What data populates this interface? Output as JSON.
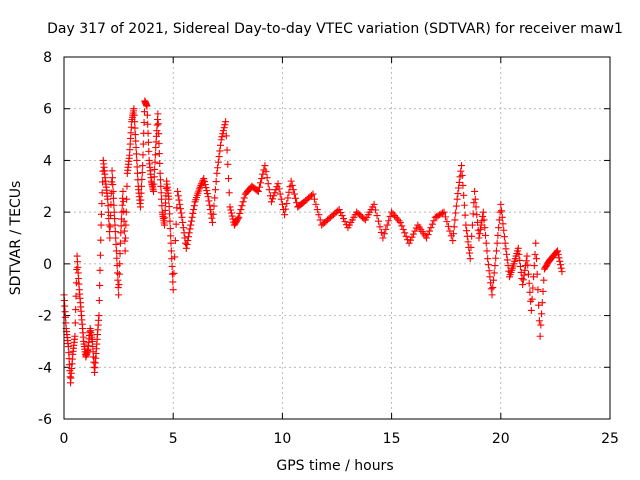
{
  "chart_data": {
    "type": "scatter",
    "title": "Day 317 of 2021, Sidereal Day-to-day VTEC variation (SDTVAR) for receiver maw1",
    "xlabel": "GPS time / hours",
    "ylabel": "SDTVAR / TECUs",
    "xlim": [
      0,
      25
    ],
    "ylim": [
      -6,
      8
    ],
    "xticks": [
      0,
      5,
      10,
      15,
      20,
      25
    ],
    "yticks": [
      -6,
      -4,
      -2,
      0,
      2,
      4,
      6,
      8
    ],
    "x_tick_labels": [
      "0",
      "5",
      "10",
      "15",
      "20",
      "25"
    ],
    "y_tick_labels": [
      "-6",
      "-4",
      "-2",
      "0",
      "2",
      "4",
      "6",
      "8"
    ],
    "grid": true,
    "marker": "+",
    "color": "#ff0000",
    "series": [
      {
        "name": "maw1",
        "x": [
          0.0,
          0.1,
          0.2,
          0.3,
          0.4,
          0.5,
          0.6,
          0.7,
          0.8,
          0.9,
          1.0,
          1.1,
          1.2,
          1.3,
          1.4,
          1.5,
          1.6,
          1.7,
          1.8,
          1.9,
          2.0,
          2.1,
          2.2,
          2.3,
          2.4,
          2.5,
          2.6,
          2.7,
          2.8,
          2.9,
          3.0,
          3.1,
          3.2,
          3.3,
          3.4,
          3.5,
          3.6,
          3.7,
          3.8,
          3.9,
          4.0,
          4.1,
          4.2,
          4.3,
          4.4,
          4.5,
          4.6,
          4.7,
          4.8,
          4.9,
          5.0,
          5.2,
          5.4,
          5.6,
          5.8,
          6.0,
          6.2,
          6.4,
          6.6,
          6.8,
          7.0,
          7.2,
          7.4,
          7.6,
          7.8,
          8.0,
          8.3,
          8.6,
          8.9,
          9.2,
          9.5,
          9.8,
          10.1,
          10.4,
          10.7,
          11.0,
          11.4,
          11.8,
          12.2,
          12.6,
          13.0,
          13.4,
          13.8,
          14.2,
          14.6,
          15.0,
          15.4,
          15.8,
          16.2,
          16.6,
          17.0,
          17.4,
          17.8,
          18.0,
          18.2,
          18.4,
          18.6,
          18.8,
          19.0,
          19.2,
          19.4,
          19.6,
          19.8,
          20.0,
          20.2,
          20.4,
          20.6,
          20.8,
          21.0,
          21.2,
          21.4,
          21.6,
          21.8,
          22.0,
          22.2,
          22.4,
          22.6,
          22.8
        ],
        "y": [
          -1.2,
          -2.5,
          -3.2,
          -4.6,
          -3.5,
          -2.8,
          0.3,
          -1.0,
          -2.0,
          -3.0,
          -3.6,
          -3.3,
          -2.5,
          -3.0,
          -4.2,
          -3.1,
          -2.0,
          1.5,
          4.0,
          3.2,
          2.5,
          1.0,
          3.6,
          2.0,
          0.5,
          -1.2,
          1.2,
          2.8,
          0.5,
          3.5,
          4.2,
          5.5,
          6.0,
          4.5,
          3.0,
          2.2,
          3.8,
          6.3,
          6.1,
          4.0,
          3.2,
          2.8,
          4.5,
          5.8,
          3.5,
          2.0,
          1.5,
          3.2,
          2.5,
          0.8,
          -1.0,
          2.8,
          1.8,
          0.6,
          1.5,
          2.4,
          2.9,
          3.3,
          2.6,
          1.6,
          3.5,
          4.8,
          5.5,
          2.2,
          1.5,
          1.8,
          2.7,
          3.0,
          2.8,
          3.8,
          2.4,
          3.1,
          1.9,
          3.2,
          2.2,
          2.4,
          2.7,
          1.5,
          1.8,
          2.1,
          1.4,
          2.0,
          1.7,
          2.3,
          1.0,
          2.0,
          1.6,
          0.8,
          1.5,
          1.0,
          1.8,
          2.0,
          0.9,
          2.5,
          3.8,
          1.5,
          0.2,
          2.8,
          1.0,
          2.0,
          0.2,
          -1.2,
          0.5,
          2.3,
          0.8,
          -0.5,
          0.0,
          0.6,
          -0.8,
          0.3,
          -1.8,
          0.8,
          -2.8,
          -0.2,
          0.1,
          0.3,
          0.5,
          -0.3
        ]
      }
    ]
  }
}
